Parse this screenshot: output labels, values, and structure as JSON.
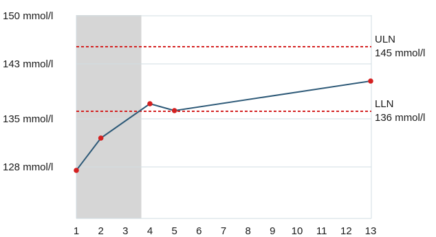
{
  "chart_data": {
    "type": "line",
    "title": "",
    "xlabel": "",
    "ylabel": "",
    "x": [
      1,
      2,
      4,
      5,
      13
    ],
    "series": [
      {
        "values": [
          127.5,
          132.2,
          137.2,
          136.2,
          140.5
        ]
      }
    ],
    "xlim": [
      1,
      13
    ],
    "ylim": [
      120,
      150
    ],
    "x_ticks": [
      {
        "value": 1,
        "label": "1"
      },
      {
        "value": 2,
        "label": "2"
      },
      {
        "value": 3,
        "label": "3"
      },
      {
        "value": 4,
        "label": "4"
      },
      {
        "value": 5,
        "label": "5"
      },
      {
        "value": 6,
        "label": "6"
      },
      {
        "value": 7,
        "label": "7"
      },
      {
        "value": 8,
        "label": "8"
      },
      {
        "value": 9,
        "label": "9"
      },
      {
        "value": 10,
        "label": "10"
      },
      {
        "value": 11,
        "label": "11"
      },
      {
        "value": 12,
        "label": "12"
      },
      {
        "value": 13,
        "label": "13"
      }
    ],
    "y_ticks": [
      {
        "value": 150,
        "label": "150 mmol/l"
      },
      {
        "value": 143,
        "label": "143 mmol/l"
      },
      {
        "value": 135,
        "label": "135 mmol/l"
      },
      {
        "value": 128,
        "label": "128 mmol/l"
      }
    ],
    "reference_lines": [
      {
        "name": "ULN",
        "label": "ULN",
        "value_label": "145 mmol/l",
        "value": 145.5
      },
      {
        "name": "LLN",
        "label": "LLN",
        "value_label": "136 mmol/l",
        "value": 136.1
      }
    ],
    "shaded_region": {
      "x_start": 1,
      "x_end": 3.65
    },
    "grid": true,
    "legend": "none",
    "colors": {
      "line": "#2e5a78",
      "point": "#d42020",
      "reference": "#d42020",
      "shade": "#d6d6d6",
      "grid": "#d2dde3",
      "axis": "#d2dde3"
    }
  }
}
